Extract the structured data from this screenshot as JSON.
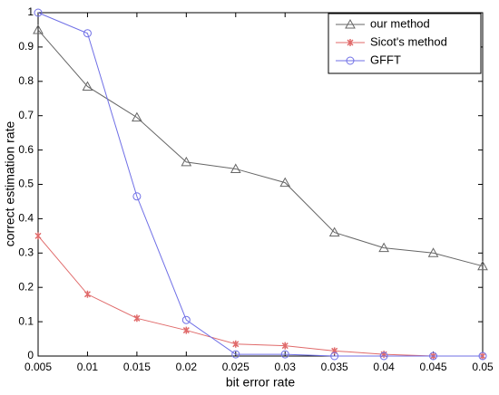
{
  "chart_data": {
    "type": "line",
    "x_label": "bit error rate",
    "y_label": "correct estimation rate",
    "x": [
      0.005,
      0.01,
      0.015,
      0.02,
      0.025,
      0.03,
      0.035,
      0.04,
      0.045,
      0.05
    ],
    "series": [
      {
        "name": "our method",
        "color": "#666666",
        "marker": "triangle",
        "values": [
          0.95,
          0.785,
          0.695,
          0.565,
          0.545,
          0.505,
          0.36,
          0.315,
          0.3,
          0.262
        ]
      },
      {
        "name": "Sicot's method",
        "color": "#e06a6a",
        "marker": "star",
        "values": [
          0.35,
          0.18,
          0.11,
          0.075,
          0.035,
          0.03,
          0.015,
          0.005,
          0,
          0
        ]
      },
      {
        "name": "GFFT",
        "color": "#6f6fe6",
        "marker": "circle",
        "values": [
          1,
          0.94,
          0.465,
          0.105,
          0.005,
          0.005,
          0,
          0,
          0,
          0
        ]
      }
    ],
    "xlim": [
      0.005,
      0.05
    ],
    "xticks": [
      0.005,
      0.01,
      0.015,
      0.02,
      0.025,
      0.03,
      0.035,
      0.04,
      0.045,
      0.05
    ],
    "ylim": [
      0,
      1
    ],
    "yticks": [
      0,
      0.1,
      0.2,
      0.3,
      0.4,
      0.5,
      0.6,
      0.7,
      0.8,
      0.9,
      1
    ],
    "grid": false,
    "legend": "upper right"
  }
}
